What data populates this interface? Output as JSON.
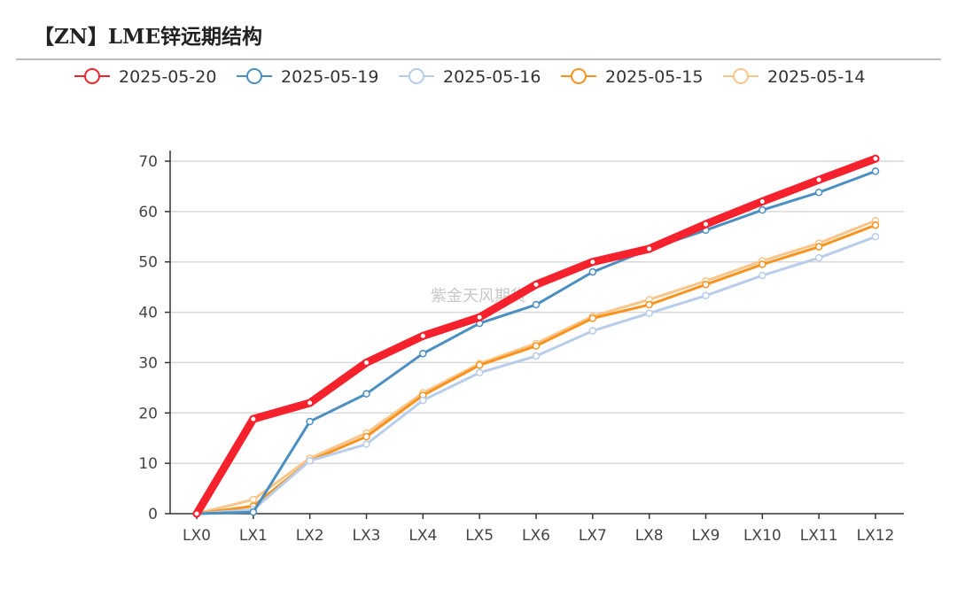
{
  "page": {
    "title": "【ZN】LME锌远期结构",
    "watermark": "紫金天风期货"
  },
  "chart_data": {
    "type": "line",
    "title": "",
    "xlabel": "",
    "ylabel": "",
    "categories": [
      "LX0",
      "LX1",
      "LX2",
      "LX3",
      "LX4",
      "LX5",
      "LX6",
      "LX7",
      "LX8",
      "LX9",
      "LX10",
      "LX11",
      "LX12"
    ],
    "ylim": [
      0,
      70
    ],
    "yticks": [
      0,
      10,
      20,
      30,
      40,
      50,
      60,
      70
    ],
    "grid": "horizontal",
    "legend_position": "top",
    "series": [
      {
        "name": "2025-05-20",
        "color": "#f5222d",
        "emphasis": true,
        "values": [
          0,
          18.8,
          22,
          30,
          35.3,
          39,
          45.5,
          50,
          52.6,
          57.5,
          62,
          66.3,
          70.5
        ]
      },
      {
        "name": "2025-05-19",
        "color": "#4a8ec2",
        "values": [
          0,
          0.3,
          18.3,
          23.8,
          31.8,
          37.8,
          41.5,
          48,
          52.5,
          56.3,
          60.3,
          63.8,
          68
        ]
      },
      {
        "name": "2025-05-16",
        "color": "#b8cdea",
        "values": [
          0,
          0.8,
          10.5,
          13.8,
          22.5,
          28,
          31.3,
          36.3,
          39.8,
          43.3,
          47.3,
          50.8,
          55
        ]
      },
      {
        "name": "2025-05-15",
        "color": "#f7931e",
        "values": [
          0,
          1.5,
          10.5,
          15.3,
          23.5,
          29.5,
          33.3,
          38.8,
          41.5,
          45.5,
          49.5,
          53,
          57.3
        ]
      },
      {
        "name": "2025-05-14",
        "color": "#fbc58a",
        "values": [
          0,
          2.8,
          11,
          16,
          24,
          29.8,
          33.8,
          39.2,
          42.5,
          46.2,
          50.2,
          53.7,
          58.2
        ]
      }
    ]
  }
}
